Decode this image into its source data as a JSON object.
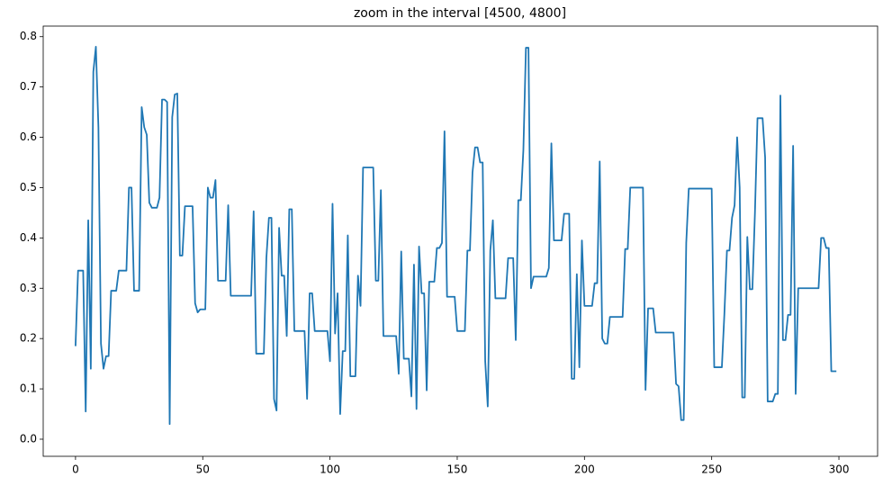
{
  "chart_data": {
    "type": "line",
    "title": "zoom in the interval [4500, 4800]",
    "x": [
      0,
      1,
      2,
      3,
      4,
      5,
      6,
      7,
      8,
      9,
      10,
      11,
      12,
      13,
      14,
      15,
      16,
      17,
      18,
      19,
      20,
      21,
      22,
      23,
      24,
      25,
      26,
      27,
      28,
      29,
      30,
      31,
      32,
      33,
      34,
      35,
      36,
      37,
      38,
      39,
      40,
      41,
      42,
      43,
      44,
      45,
      46,
      47,
      48,
      49,
      50,
      51,
      52,
      53,
      54,
      55,
      56,
      57,
      58,
      59,
      60,
      61,
      62,
      63,
      64,
      65,
      66,
      67,
      68,
      69,
      70,
      71,
      72,
      73,
      74,
      75,
      76,
      77,
      78,
      79,
      80,
      81,
      82,
      83,
      84,
      85,
      86,
      87,
      88,
      89,
      90,
      91,
      92,
      93,
      94,
      95,
      96,
      97,
      98,
      99,
      100,
      101,
      102,
      103,
      104,
      105,
      106,
      107,
      108,
      109,
      110,
      111,
      112,
      113,
      114,
      115,
      116,
      117,
      118,
      119,
      120,
      121,
      122,
      123,
      124,
      125,
      126,
      127,
      128,
      129,
      130,
      131,
      132,
      133,
      134,
      135,
      136,
      137,
      138,
      139,
      140,
      141,
      142,
      143,
      144,
      145,
      146,
      147,
      148,
      149,
      150,
      151,
      152,
      153,
      154,
      155,
      156,
      157,
      158,
      159,
      160,
      161,
      162,
      163,
      164,
      165,
      166,
      167,
      168,
      169,
      170,
      171,
      172,
      173,
      174,
      175,
      176,
      177,
      178,
      179,
      180,
      181,
      182,
      183,
      184,
      185,
      186,
      187,
      188,
      189,
      190,
      191,
      192,
      193,
      194,
      195,
      196,
      197,
      198,
      199,
      200,
      201,
      202,
      203,
      204,
      205,
      206,
      207,
      208,
      209,
      210,
      211,
      212,
      213,
      214,
      215,
      216,
      217,
      218,
      219,
      220,
      221,
      222,
      223,
      224,
      225,
      226,
      227,
      228,
      229,
      230,
      231,
      232,
      233,
      234,
      235,
      236,
      237,
      238,
      239,
      240,
      241,
      242,
      243,
      244,
      245,
      246,
      247,
      248,
      249,
      250,
      251,
      252,
      253,
      254,
      255,
      256,
      257,
      258,
      259,
      260,
      261,
      262,
      263,
      264,
      265,
      266,
      267,
      268,
      269,
      270,
      271,
      272,
      273,
      274,
      275,
      276,
      277,
      278,
      279,
      280,
      281,
      282,
      283,
      284,
      285,
      286,
      287,
      288,
      289,
      290,
      291,
      292,
      293,
      294,
      295,
      296,
      297,
      298,
      299
    ],
    "values": [
      0.185,
      0.335,
      0.335,
      0.335,
      0.055,
      0.435,
      0.14,
      0.73,
      0.78,
      0.62,
      0.19,
      0.14,
      0.165,
      0.165,
      0.295,
      0.295,
      0.295,
      0.335,
      0.335,
      0.335,
      0.335,
      0.5,
      0.5,
      0.295,
      0.295,
      0.295,
      0.66,
      0.62,
      0.605,
      0.47,
      0.46,
      0.46,
      0.46,
      0.48,
      0.675,
      0.675,
      0.67,
      0.03,
      0.64,
      0.685,
      0.687,
      0.365,
      0.365,
      0.463,
      0.463,
      0.463,
      0.463,
      0.27,
      0.252,
      0.258,
      0.258,
      0.258,
      0.5,
      0.48,
      0.48,
      0.515,
      0.315,
      0.315,
      0.315,
      0.315,
      0.465,
      0.285,
      0.285,
      0.285,
      0.285,
      0.285,
      0.285,
      0.285,
      0.285,
      0.285,
      0.453,
      0.17,
      0.17,
      0.17,
      0.17,
      0.36,
      0.44,
      0.44,
      0.08,
      0.057,
      0.42,
      0.325,
      0.325,
      0.205,
      0.457,
      0.457,
      0.215,
      0.215,
      0.215,
      0.215,
      0.215,
      0.08,
      0.29,
      0.29,
      0.215,
      0.215,
      0.215,
      0.215,
      0.215,
      0.215,
      0.155,
      0.468,
      0.21,
      0.29,
      0.05,
      0.175,
      0.175,
      0.405,
      0.125,
      0.125,
      0.125,
      0.325,
      0.265,
      0.54,
      0.54,
      0.54,
      0.54,
      0.54,
      0.315,
      0.315,
      0.495,
      0.205,
      0.205,
      0.205,
      0.205,
      0.205,
      0.205,
      0.13,
      0.373,
      0.16,
      0.16,
      0.16,
      0.085,
      0.347,
      0.06,
      0.383,
      0.29,
      0.29,
      0.097,
      0.313,
      0.313,
      0.313,
      0.38,
      0.38,
      0.39,
      0.612,
      0.283,
      0.283,
      0.283,
      0.283,
      0.215,
      0.215,
      0.215,
      0.215,
      0.375,
      0.375,
      0.53,
      0.58,
      0.58,
      0.55,
      0.55,
      0.155,
      0.065,
      0.375,
      0.435,
      0.28,
      0.28,
      0.28,
      0.28,
      0.28,
      0.36,
      0.36,
      0.36,
      0.197,
      0.475,
      0.475,
      0.575,
      0.778,
      0.778,
      0.3,
      0.323,
      0.323,
      0.323,
      0.323,
      0.323,
      0.323,
      0.34,
      0.588,
      0.395,
      0.395,
      0.395,
      0.395,
      0.448,
      0.448,
      0.448,
      0.12,
      0.12,
      0.328,
      0.143,
      0.395,
      0.265,
      0.265,
      0.265,
      0.265,
      0.31,
      0.31,
      0.552,
      0.2,
      0.19,
      0.19,
      0.243,
      0.243,
      0.243,
      0.243,
      0.243,
      0.243,
      0.378,
      0.378,
      0.5,
      0.5,
      0.5,
      0.5,
      0.5,
      0.5,
      0.098,
      0.26,
      0.26,
      0.26,
      0.212,
      0.212,
      0.212,
      0.212,
      0.212,
      0.212,
      0.212,
      0.212,
      0.11,
      0.105,
      0.038,
      0.038,
      0.39,
      0.498,
      0.498,
      0.498,
      0.498,
      0.498,
      0.498,
      0.498,
      0.498,
      0.498,
      0.498,
      0.143,
      0.143,
      0.143,
      0.143,
      0.25,
      0.375,
      0.375,
      0.44,
      0.465,
      0.6,
      0.5,
      0.083,
      0.083,
      0.402,
      0.298,
      0.298,
      0.45,
      0.638,
      0.638,
      0.638,
      0.56,
      0.075,
      0.075,
      0.075,
      0.09,
      0.09,
      0.683,
      0.197,
      0.197,
      0.247,
      0.247,
      0.583,
      0.09,
      0.3,
      0.3,
      0.3,
      0.3,
      0.3,
      0.3,
      0.3,
      0.3,
      0.3,
      0.4,
      0.4,
      0.38,
      0.38,
      0.135,
      0.135,
      0.135
    ],
    "color": "#1f77b4",
    "xlim": [
      -12.7,
      315.2
    ],
    "xticks": [
      0,
      50,
      100,
      150,
      200,
      250,
      300
    ],
    "ylim": [
      -0.034,
      0.821
    ],
    "yticks": [
      {
        "value": 0,
        "label": "0.0"
      },
      0.1,
      0.2,
      0.3,
      0.4,
      0.5,
      0.6,
      0.7,
      0.8
    ],
    "grid": false
  }
}
